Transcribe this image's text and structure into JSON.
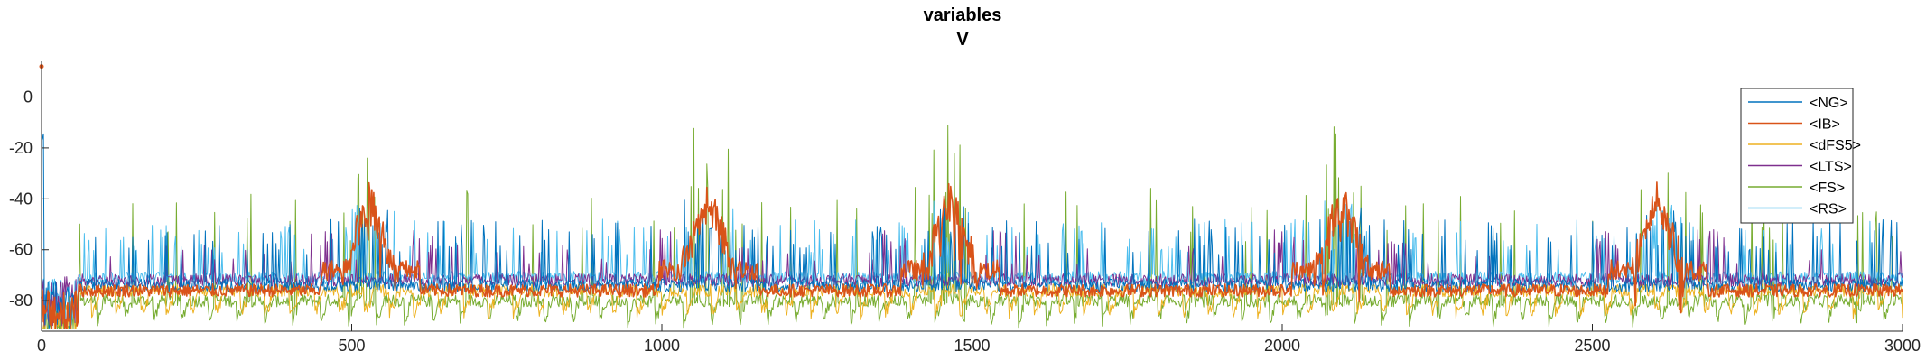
{
  "chart_data": {
    "type": "line",
    "title": "variables",
    "subtitle": "V",
    "xlabel": "",
    "ylabel": "",
    "xlim": [
      0,
      3000
    ],
    "ylim": [
      -92,
      14
    ],
    "x_ticks": [
      "0",
      "500",
      "1000",
      "1500",
      "2000",
      "2500",
      "3000"
    ],
    "y_ticks": [
      "0",
      "-20",
      "-40",
      "-60",
      "-80"
    ],
    "grid": false,
    "legend_position": "top-right",
    "bursts": [
      530,
      1075,
      1465,
      2095,
      2605
    ],
    "series": [
      {
        "name": "<NG>",
        "color": "#0072BD",
        "baseline": -74
      },
      {
        "name": "<IB>",
        "color": "#D95319",
        "baseline": -76
      },
      {
        "name": "<dFS5>",
        "color": "#EDB120",
        "baseline": -79
      },
      {
        "name": "<LTS>",
        "color": "#7E2F8E",
        "baseline": -72
      },
      {
        "name": "<FS>",
        "color": "#77AC30",
        "baseline": -80
      },
      {
        "name": "<RS>",
        "color": "#4DBEEE",
        "baseline": -71
      }
    ]
  }
}
